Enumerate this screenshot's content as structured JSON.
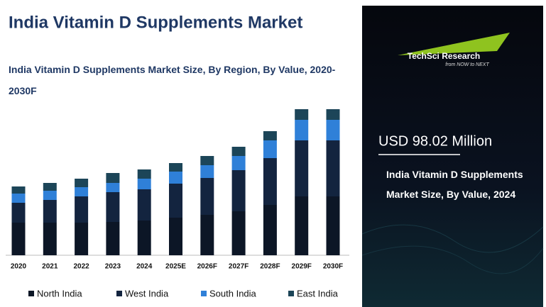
{
  "header": {
    "title": "India Vitamin D Supplements Market"
  },
  "chart_data": {
    "type": "bar",
    "stacked": true,
    "title": "India Vitamin D Supplements Market Size, By Region, By Value, 2020-2030F",
    "categories": [
      "2020",
      "2021",
      "2022",
      "2023",
      "2024",
      "2025E",
      "2026F",
      "2027F",
      "2028F",
      "2029F",
      "2030F"
    ],
    "series": [
      {
        "name": "North India",
        "color": "#0c1626",
        "values": [
          46,
          46,
          46,
          47,
          49,
          53,
          57,
          62,
          71,
          83,
          83
        ]
      },
      {
        "name": "West India",
        "color": "#13243f",
        "values": [
          28,
          32,
          37,
          42,
          44,
          48,
          52,
          58,
          66,
          79,
          79
        ]
      },
      {
        "name": "South India",
        "color": "#2f80d8",
        "values": [
          13,
          13,
          13,
          13,
          15,
          17,
          18,
          20,
          25,
          29,
          29
        ]
      },
      {
        "name": "East India",
        "color": "#1c4558",
        "values": [
          10,
          11,
          12,
          14,
          13,
          12,
          13,
          13,
          13,
          15,
          15
        ]
      }
    ],
    "legend": "bottom"
  },
  "panel": {
    "value": "USD 98.02 Million",
    "caption": "India Vitamin D Supplements Market Size, By Value, 2024"
  },
  "logo": {
    "name": "TechSci Research",
    "tagline": "from NOW to NEXT"
  }
}
